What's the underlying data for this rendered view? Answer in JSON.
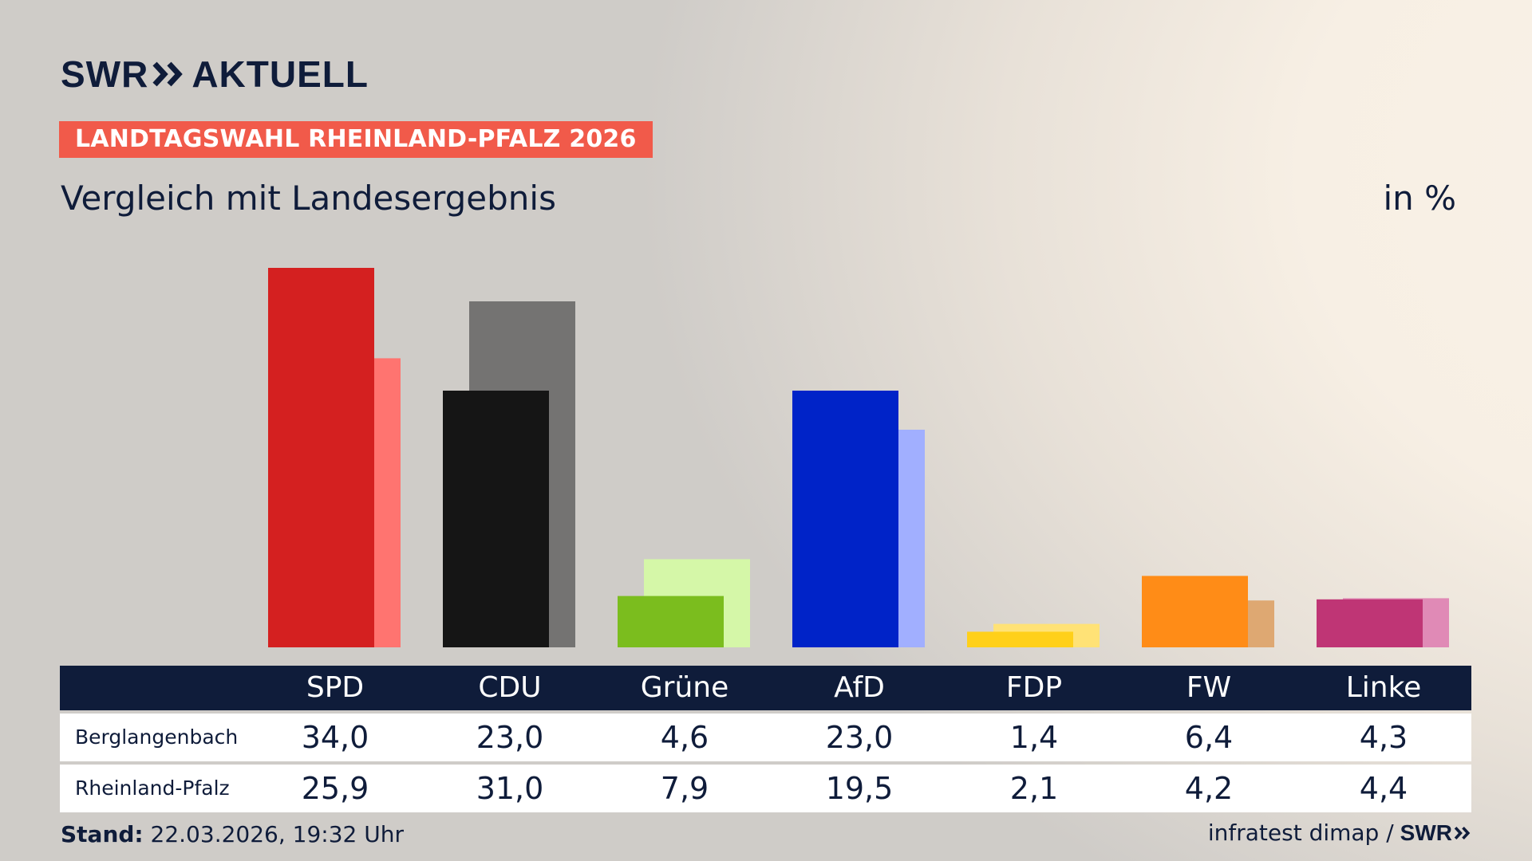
{
  "header": {
    "brand": "SWR",
    "brand_suffix": "AKTUELL",
    "badge": "LANDTAGSWAHL RHEINLAND-PFALZ 2026",
    "subtitle": "Vergleich mit Landesergebnis",
    "unit": "in %"
  },
  "colors": {
    "navy": "#0f1c3a",
    "badge": "#f15a4a"
  },
  "chart_data": {
    "type": "bar",
    "categories": [
      "SPD",
      "CDU",
      "Grüne",
      "AfD",
      "FDP",
      "FW",
      "Linke"
    ],
    "series": [
      {
        "name": "Berglangenbach",
        "values": [
          34.0,
          23.0,
          4.6,
          23.0,
          1.4,
          6.4,
          4.3
        ],
        "colors": [
          "#d42020",
          "#151515",
          "#7bbd1e",
          "#0023c8",
          "#ffd01a",
          "#ff8c17",
          "#bf3575"
        ]
      },
      {
        "name": "Rheinland-Pfalz",
        "values": [
          25.9,
          31.0,
          7.9,
          19.5,
          2.1,
          4.2,
          4.4
        ],
        "colors": [
          "#ff7470",
          "#747372",
          "#d5f7a8",
          "#a1afff",
          "#ffe276",
          "#dea872",
          "#e08ab6"
        ]
      }
    ],
    "ylim": [
      0,
      34
    ],
    "legend": "table-below",
    "grid": false
  },
  "table": {
    "headers": [
      "SPD",
      "CDU",
      "Grüne",
      "AfD",
      "FDP",
      "FW",
      "Linke"
    ],
    "rows": [
      {
        "label": "Berglangenbach",
        "values": [
          "34,0",
          "23,0",
          "4,6",
          "23,0",
          "1,4",
          "6,4",
          "4,3"
        ]
      },
      {
        "label": "Rheinland-Pfalz",
        "values": [
          "25,9",
          "31,0",
          "7,9",
          "19,5",
          "2,1",
          "4,2",
          "4,4"
        ]
      }
    ]
  },
  "footer": {
    "stand_label": "Stand:",
    "stand_value": "22.03.2026, 19:32 Uhr",
    "source": "infratest dimap /",
    "source_brand": "SWR"
  }
}
